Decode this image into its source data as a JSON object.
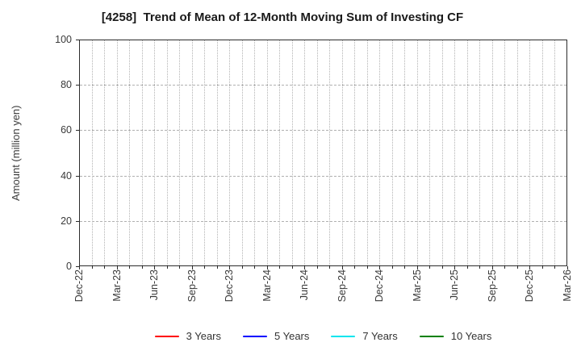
{
  "chart_data": {
    "type": "line",
    "title": "[4258]  Trend of Mean of 12-Month Moving Sum of Investing CF",
    "ylabel": "Amount (million yen)",
    "xlabel": "",
    "ylim": [
      0,
      100
    ],
    "yticks": [
      0,
      20,
      40,
      60,
      80,
      100
    ],
    "x_tick_labels": [
      "Dec-22",
      "Mar-23",
      "Jun-23",
      "Sep-23",
      "Dec-23",
      "Mar-24",
      "Jun-24",
      "Sep-24",
      "Dec-24",
      "Mar-25",
      "Jun-25",
      "Sep-25",
      "Dec-25",
      "Mar-26"
    ],
    "x_minor_per_major": 3,
    "grid": true,
    "legend_position": "bottom-center",
    "series": [
      {
        "name": "3 Years",
        "color": "#ff0000",
        "values": []
      },
      {
        "name": "5 Years",
        "color": "#0000ff",
        "values": []
      },
      {
        "name": "7 Years",
        "color": "#00e5ee",
        "values": []
      },
      {
        "name": "10 Years",
        "color": "#008000",
        "values": []
      }
    ]
  }
}
